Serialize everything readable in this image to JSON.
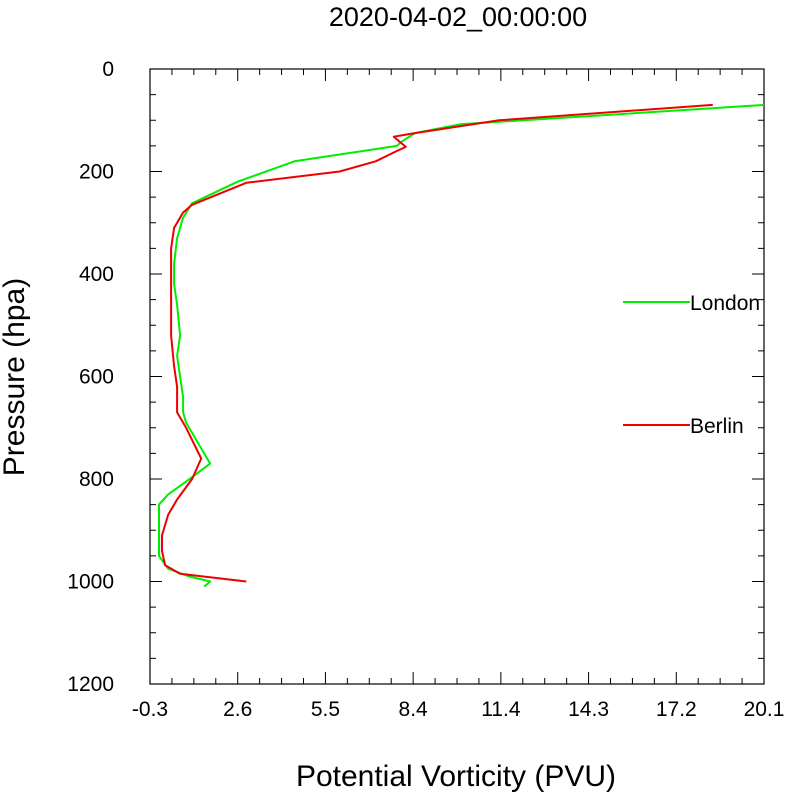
{
  "chart_data": {
    "type": "line",
    "title": "2020-04-02_00:00:00",
    "xlabel": "Potential Vorticity (PVU)",
    "ylabel": "Pressure (hpa)",
    "xlim": [
      -0.3,
      20.1
    ],
    "ylim": [
      1200,
      0
    ],
    "y_reversed": true,
    "x_ticks": [
      "-0.3",
      "2.6",
      "5.5",
      "8.4",
      "11.4",
      "14.3",
      "17.2",
      "20.1"
    ],
    "y_ticks": [
      "0",
      "200",
      "400",
      "600",
      "800",
      "1000",
      "1200"
    ],
    "grid": false,
    "legend": "right",
    "series": [
      {
        "name": "London",
        "color": "#00ee00",
        "points": [
          [
            20.1,
            70
          ],
          [
            10.0,
            108
          ],
          [
            8.5,
            125
          ],
          [
            8.1,
            140
          ],
          [
            7.9,
            150
          ],
          [
            4.5,
            180
          ],
          [
            2.6,
            220
          ],
          [
            1.1,
            262
          ],
          [
            0.8,
            290
          ],
          [
            0.6,
            330
          ],
          [
            0.5,
            380
          ],
          [
            0.5,
            420
          ],
          [
            0.6,
            460
          ],
          [
            0.7,
            520
          ],
          [
            0.6,
            560
          ],
          [
            0.7,
            600
          ],
          [
            0.8,
            640
          ],
          [
            0.8,
            670
          ],
          [
            0.9,
            690
          ],
          [
            1.7,
            770
          ],
          [
            0.9,
            805
          ],
          [
            0.3,
            830
          ],
          [
            0.0,
            850
          ],
          [
            0.0,
            880
          ],
          [
            0.0,
            910
          ],
          [
            0.0,
            950
          ],
          [
            0.3,
            975
          ],
          [
            1.0,
            990
          ],
          [
            1.7,
            1000
          ],
          [
            1.5,
            1010
          ]
        ]
      },
      {
        "name": "Berlin",
        "color": "#ee0000",
        "points": [
          [
            18.4,
            70
          ],
          [
            11.3,
            100
          ],
          [
            8.5,
            125
          ],
          [
            7.8,
            132
          ],
          [
            8.2,
            152
          ],
          [
            7.9,
            160
          ],
          [
            7.2,
            180
          ],
          [
            6.0,
            200
          ],
          [
            2.9,
            222
          ],
          [
            1.1,
            265
          ],
          [
            0.8,
            280
          ],
          [
            0.5,
            310
          ],
          [
            0.4,
            350
          ],
          [
            0.4,
            400
          ],
          [
            0.4,
            460
          ],
          [
            0.4,
            520
          ],
          [
            0.5,
            580
          ],
          [
            0.6,
            620
          ],
          [
            0.6,
            670
          ],
          [
            0.9,
            700
          ],
          [
            1.4,
            760
          ],
          [
            1.1,
            800
          ],
          [
            0.6,
            840
          ],
          [
            0.3,
            870
          ],
          [
            0.1,
            910
          ],
          [
            0.1,
            940
          ],
          [
            0.2,
            968
          ],
          [
            0.7,
            985
          ],
          [
            2.9,
            1000
          ]
        ]
      }
    ]
  }
}
